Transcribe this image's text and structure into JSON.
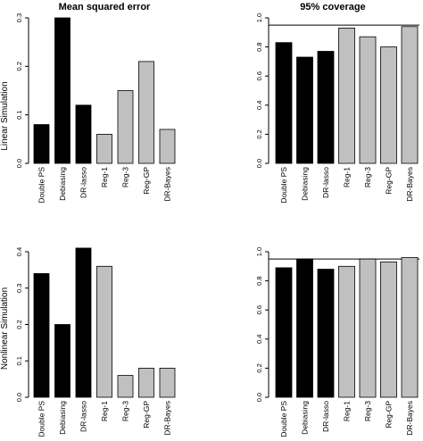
{
  "figure": {
    "column_titles": [
      "Mean squared error",
      "95% coverage"
    ],
    "row_labels": [
      "Linear Simulation",
      "Nonlinear Simulation"
    ]
  },
  "colors": {
    "dark": "#000000",
    "light": "#c0c0c0",
    "outline": "#000000"
  },
  "chart_data": [
    {
      "type": "bar",
      "title": "Mean squared error",
      "ylabel": "Linear Simulation",
      "categories": [
        "Double PS",
        "Debiasing",
        "DR-lasso",
        "Reg-1",
        "Reg-3",
        "Reg-GP",
        "DR-Bayes"
      ],
      "values": [
        0.08,
        0.3,
        0.12,
        0.06,
        0.15,
        0.21,
        0.07
      ],
      "bar_colors": [
        "dark",
        "dark",
        "dark",
        "light",
        "light",
        "light",
        "light"
      ],
      "ylim": [
        0,
        0.3
      ],
      "yticks": [
        "0.0",
        "0.1",
        "0.2",
        "0.3"
      ],
      "reference_line": null
    },
    {
      "type": "bar",
      "title": "95% coverage",
      "categories": [
        "Double PS",
        "Debiasing",
        "DR-lasso",
        "Reg-1",
        "Reg-3",
        "Reg-GP",
        "DR-Bayes"
      ],
      "values": [
        0.83,
        0.73,
        0.77,
        0.93,
        0.87,
        0.8,
        0.94
      ],
      "bar_colors": [
        "dark",
        "dark",
        "dark",
        "light",
        "light",
        "light",
        "light"
      ],
      "ylim": [
        0,
        1.0
      ],
      "yticks": [
        "0.0",
        "0.2",
        "0.4",
        "0.6",
        "0.8",
        "1.0"
      ],
      "reference_line": 0.95
    },
    {
      "type": "bar",
      "title": "",
      "ylabel": "Nonlinear Simulation",
      "categories": [
        "Double PS",
        "Debiasing",
        "DR-lasso",
        "Reg-1",
        "Reg-3",
        "Reg-GP",
        "DR-Bayes"
      ],
      "values": [
        0.34,
        0.2,
        0.41,
        0.36,
        0.06,
        0.08,
        0.08
      ],
      "bar_colors": [
        "dark",
        "dark",
        "dark",
        "light",
        "light",
        "light",
        "light"
      ],
      "ylim": [
        0,
        0.4
      ],
      "yticks": [
        "0.0",
        "0.1",
        "0.2",
        "0.3",
        "0.4"
      ],
      "reference_line": null
    },
    {
      "type": "bar",
      "title": "",
      "categories": [
        "Double PS",
        "Debiasing",
        "DR-lasso",
        "Reg-1",
        "Reg-3",
        "Reg-GP",
        "DR-Bayes"
      ],
      "values": [
        0.89,
        0.95,
        0.88,
        0.9,
        0.95,
        0.93,
        0.96
      ],
      "bar_colors": [
        "dark",
        "dark",
        "dark",
        "light",
        "light",
        "light",
        "light"
      ],
      "ylim": [
        0,
        1.0
      ],
      "yticks": [
        "0.0",
        "0.2",
        "0.4",
        "0.6",
        "0.8",
        "1.0"
      ],
      "reference_line": 0.95
    }
  ]
}
